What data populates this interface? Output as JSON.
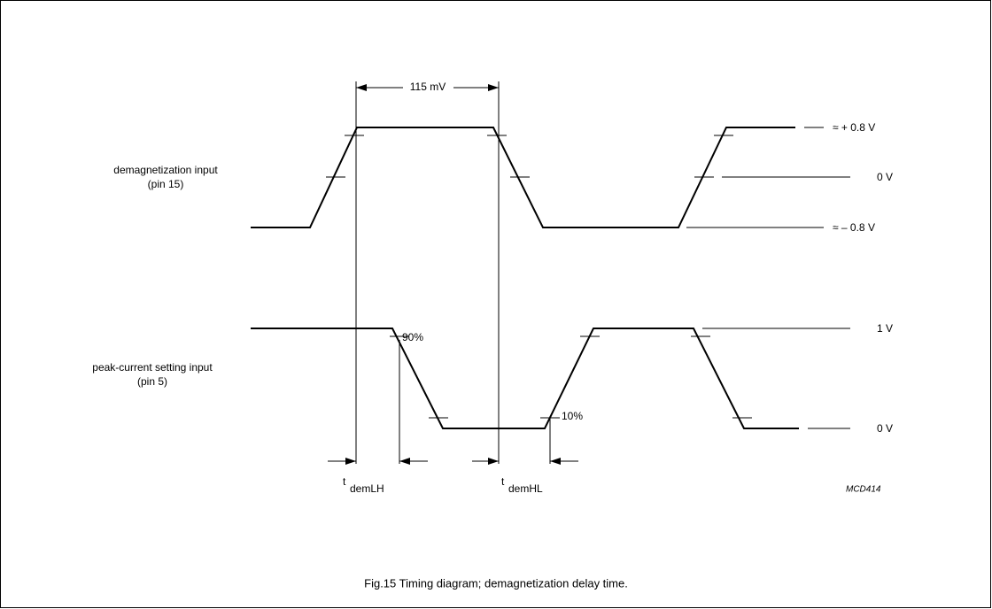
{
  "labels": {
    "top_width": "115 mV",
    "plus_level": "≈  + 0.8 V",
    "zero_level_top": "0 V",
    "minus_level": "≈  – 0.8 V",
    "one_level": "1 V",
    "zero_level_bottom": "0 V"
  },
  "signals": [
    {
      "name": "demagnetization input",
      "pin": "(pin 15)"
    },
    {
      "name": "peak-current setting input",
      "pin": "(pin 5)"
    }
  ],
  "thresholds": {
    "high": "90%",
    "low": "10%"
  },
  "delays": [
    {
      "t": "t",
      "sub": "demLH"
    },
    {
      "t": "t",
      "sub": "demHL"
    }
  ],
  "code": "MCD414",
  "caption": "Fig.15  Timing diagram; demagnetization delay time."
}
